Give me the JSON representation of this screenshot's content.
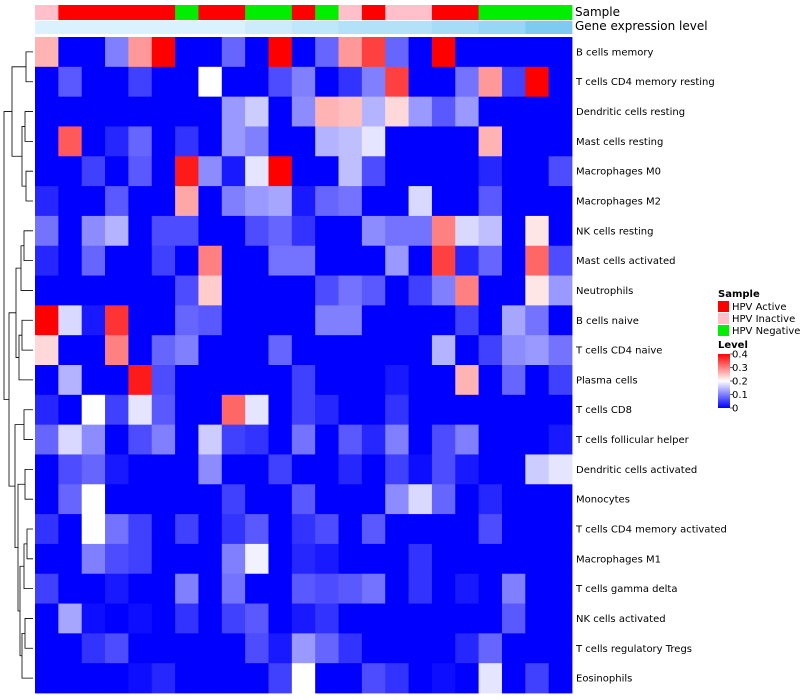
{
  "chart_data": {
    "type": "heatmap",
    "annotations": {
      "sample_label": "Sample",
      "gene_label": "Gene expression level",
      "sample_groups": [
        "HPV Inactive",
        "HPV Active",
        "HPV Active",
        "HPV Active",
        "HPV Active",
        "HPV Active",
        "HPV Negative",
        "HPV Active",
        "HPV Active",
        "HPV Negative",
        "HPV Negative",
        "HPV Active",
        "HPV Negative",
        "HPV Inactive",
        "HPV Active",
        "HPV Inactive",
        "HPV Inactive",
        "HPV Active",
        "HPV Active",
        "HPV Negative",
        "HPV Negative",
        "HPV Negative",
        "HPV Negative"
      ],
      "gene_levels": [
        0.05,
        0.05,
        0.05,
        0.05,
        0.05,
        0.05,
        0.05,
        0.05,
        0.05,
        0.1,
        0.1,
        0.15,
        0.15,
        0.2,
        0.2,
        0.2,
        0.2,
        0.25,
        0.25,
        0.3,
        0.3,
        0.4,
        0.4
      ]
    },
    "rows": [
      "B cells memory",
      "T cells CD4 memory resting",
      "Dendritic cells resting",
      "Mast cells resting",
      "Macrophages M0",
      "Macrophages M2",
      "NK cells resting",
      "Mast cells activated",
      "Neutrophils",
      "B cells naive",
      "T cells CD4 naive",
      "Plasma cells",
      "T cells CD8",
      "T cells follicular helper",
      "Dendritic cells activated",
      "Monocytes",
      "T cells CD4 memory activated",
      "Macrophages M1",
      "T cells gamma delta",
      "NK cells activated",
      "T cells regulatory  Tregs",
      "Eosinophils"
    ],
    "values": [
      [
        0.26,
        0,
        0,
        0.1,
        0.28,
        0.4,
        0,
        0,
        0.08,
        0,
        0.4,
        0,
        0.08,
        0.28,
        0.35,
        0.08,
        0,
        0.4,
        0,
        0,
        0,
        0,
        0
      ],
      [
        0,
        0.07,
        0,
        0,
        0.05,
        0,
        0,
        0.2,
        0,
        0,
        0.06,
        0.1,
        0,
        0.04,
        0.1,
        0.35,
        0,
        0,
        0.09,
        0.28,
        0.05,
        0.4,
        0
      ],
      [
        0,
        0,
        0,
        0,
        0,
        0,
        0,
        0,
        0.12,
        0.16,
        0,
        0.11,
        0.26,
        0.25,
        0.14,
        0.23,
        0.12,
        0.07,
        0.12,
        0,
        0,
        0,
        0
      ],
      [
        0,
        0.33,
        0,
        0.03,
        0.08,
        0,
        0.04,
        0,
        0.12,
        0.1,
        0,
        0,
        0.14,
        0.15,
        0.18,
        0,
        0,
        0,
        0,
        0.26,
        0,
        0,
        0
      ],
      [
        0,
        0,
        0.05,
        0,
        0.07,
        0,
        0.38,
        0.11,
        0.02,
        0.18,
        0.4,
        0,
        0,
        0.15,
        0.06,
        0,
        0,
        0,
        0,
        0.03,
        0,
        0,
        0.06
      ],
      [
        0.03,
        0,
        0,
        0.07,
        0,
        0,
        0.27,
        0,
        0.1,
        0.12,
        0.13,
        0.02,
        0.08,
        0.09,
        0,
        0,
        0.17,
        0,
        0,
        0.07,
        0,
        0,
        0
      ],
      [
        0.09,
        0,
        0.11,
        0.14,
        0,
        0.06,
        0.06,
        0,
        0,
        0.06,
        0.08,
        0.04,
        0,
        0,
        0.11,
        0.09,
        0.09,
        0.3,
        0.17,
        0.15,
        0,
        0.22,
        0
      ],
      [
        0.03,
        0,
        0.08,
        0,
        0,
        0.05,
        0,
        0.3,
        0,
        0,
        0.09,
        0.09,
        0,
        0,
        0,
        0.12,
        0,
        0.35,
        0.03,
        0.08,
        0,
        0.32,
        0.06
      ],
      [
        0,
        0,
        0,
        0,
        0,
        0,
        0.06,
        0.24,
        0,
        0,
        0,
        0,
        0.06,
        0.09,
        0.07,
        0,
        0.05,
        0.1,
        0.3,
        0,
        0,
        0.22,
        0.12
      ],
      [
        0.4,
        0.17,
        0.02,
        0.36,
        0,
        0,
        0.08,
        0.07,
        0,
        0,
        0,
        0,
        0.1,
        0.1,
        0,
        0,
        0,
        0,
        0.05,
        0,
        0.13,
        0.09,
        0
      ],
      [
        0.23,
        0,
        0,
        0.3,
        0,
        0.08,
        0.1,
        0,
        0,
        0,
        0.08,
        0,
        0,
        0,
        0,
        0,
        0,
        0.14,
        0,
        0.05,
        0.11,
        0.12,
        0.09
      ],
      [
        0,
        0.14,
        0,
        0,
        0.38,
        0.06,
        0,
        0,
        0,
        0,
        0,
        0.05,
        0,
        0,
        0,
        0.02,
        0,
        0,
        0.26,
        0,
        0.08,
        0,
        0.05
      ],
      [
        0.03,
        0,
        0.2,
        0.05,
        0.18,
        0.07,
        0,
        0,
        0.32,
        0.18,
        0,
        0.05,
        0.03,
        0,
        0,
        0.04,
        0,
        0,
        0,
        0,
        0,
        0,
        0
      ],
      [
        0.08,
        0.17,
        0.11,
        0,
        0.06,
        0.1,
        0,
        0.16,
        0.05,
        0.04,
        0,
        0.09,
        0,
        0.07,
        0.03,
        0.1,
        0,
        0.06,
        0.1,
        0,
        0,
        0,
        0.02
      ],
      [
        0,
        0.06,
        0.08,
        0.02,
        0,
        0,
        0,
        0.11,
        0,
        0,
        0.05,
        0,
        0,
        0.03,
        0,
        0.05,
        0.01,
        0.06,
        0.02,
        0,
        0,
        0.16,
        0.18
      ],
      [
        0,
        0.08,
        0.2,
        0,
        0,
        0,
        0,
        0,
        0.05,
        0,
        0,
        0.07,
        0,
        0,
        0,
        0.11,
        0.17,
        0.08,
        0,
        0.03,
        0,
        0,
        0
      ],
      [
        0.04,
        0,
        0.2,
        0.09,
        0.05,
        0,
        0.05,
        0,
        0.04,
        0.07,
        0,
        0.04,
        0.06,
        0,
        0.07,
        0,
        0,
        0,
        0,
        0.06,
        0,
        0,
        0
      ],
      [
        0,
        0,
        0.1,
        0.06,
        0.05,
        0,
        0,
        0,
        0.1,
        0.19,
        0,
        0.03,
        0.02,
        0,
        0,
        0,
        0.04,
        0,
        0,
        0,
        0,
        0,
        0
      ],
      [
        0.05,
        0,
        0,
        0.02,
        0,
        0,
        0.1,
        0,
        0.09,
        0,
        0,
        0.07,
        0.06,
        0.07,
        0.09,
        0,
        0.04,
        0,
        0.02,
        0,
        0.1,
        0,
        0
      ],
      [
        0,
        0.13,
        0.01,
        0,
        0.01,
        0,
        0.04,
        0,
        0.05,
        0.07,
        0,
        0.02,
        0.04,
        0,
        0,
        0,
        0,
        0,
        0,
        0,
        0.07,
        0,
        0
      ],
      [
        0,
        0,
        0.04,
        0.06,
        0,
        0,
        0,
        0,
        0,
        0.06,
        0.02,
        0.12,
        0.08,
        0.04,
        0,
        0,
        0,
        0,
        0.03,
        0.08,
        0,
        0,
        0
      ],
      [
        0,
        0,
        0,
        0,
        0.01,
        0.03,
        0,
        0,
        0,
        0,
        0.05,
        0.2,
        0,
        0,
        0.06,
        0.04,
        0,
        0.01,
        0,
        0.18,
        0,
        0.05,
        0
      ]
    ],
    "legend": {
      "sample_title": "Sample",
      "sample_entries": [
        {
          "label": "HPV Active",
          "color": "#ff0000"
        },
        {
          "label": "HPV Inactive",
          "color": "#ffc0cb"
        },
        {
          "label": "HPV Negative",
          "color": "#00ee00"
        }
      ],
      "level_title": "Level",
      "level_ticks": [
        "0.4",
        "0.3",
        "0.2",
        "0.1",
        "0"
      ],
      "level_max": 0.4
    },
    "colors": {
      "low": "#0000ff",
      "mid": "#ffffff",
      "high": "#ff0000",
      "gene_low": "#e6f7ff",
      "gene_high": "#7ecbf1"
    }
  }
}
